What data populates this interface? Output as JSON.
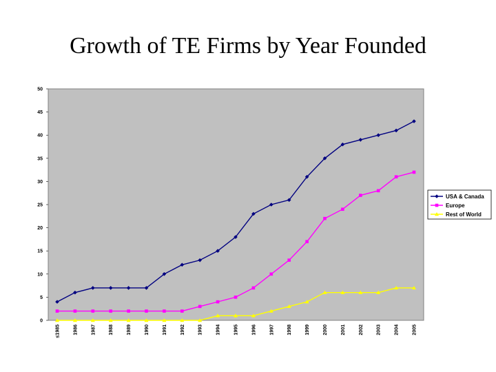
{
  "slide": {
    "title": "Growth of TE Firms by Year Founded"
  },
  "chart_data": {
    "type": "line",
    "title": "Growth of TE Firms by Year Founded",
    "xlabel": "",
    "ylabel": "",
    "categories": [
      "≤1985",
      "1986",
      "1987",
      "1988",
      "1989",
      "1990",
      "1991",
      "1992",
      "1993",
      "1994",
      "1995",
      "1996",
      "1997",
      "1998",
      "1999",
      "2000",
      "2001",
      "2002",
      "2003",
      "2004",
      "2005"
    ],
    "ylim": [
      0,
      50
    ],
    "yticks": [
      "0",
      "5",
      "10",
      "15",
      "20",
      "25",
      "30",
      "35",
      "40",
      "45",
      "50"
    ],
    "grid": false,
    "plot_background": "#c0c0c0",
    "legend": "right",
    "series": [
      {
        "name": "USA & Canada",
        "color": "#000080",
        "marker": "diamond",
        "values": [
          4,
          6,
          7,
          7,
          7,
          7,
          10,
          12,
          13,
          15,
          18,
          23,
          25,
          26,
          31,
          35,
          38,
          39,
          40,
          41,
          43
        ]
      },
      {
        "name": "Europe",
        "color": "#ff00ff",
        "marker": "square",
        "values": [
          2,
          2,
          2,
          2,
          2,
          2,
          2,
          2,
          3,
          4,
          5,
          7,
          10,
          13,
          17,
          22,
          24,
          27,
          28,
          31,
          32
        ]
      },
      {
        "name": "Rest of World",
        "color": "#ffff00",
        "marker": "triangle",
        "values": [
          0,
          0,
          0,
          0,
          0,
          0,
          0,
          0,
          0,
          1,
          1,
          1,
          2,
          3,
          4,
          6,
          6,
          6,
          6,
          7,
          7
        ]
      }
    ]
  }
}
